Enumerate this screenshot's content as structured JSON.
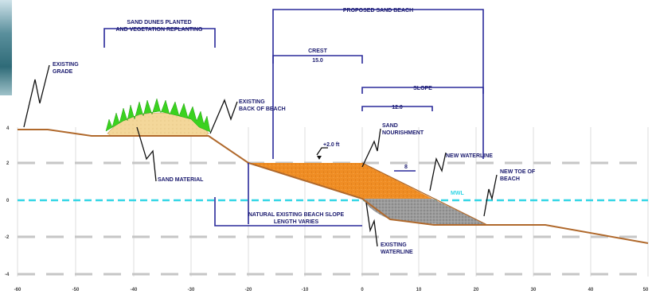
{
  "labels": {
    "existing_grade": [
      "EXISTING",
      "GRADE"
    ],
    "sand_dunes": [
      "SAND DUNES PLANTED",
      "AND VEGETATION REPLANTING"
    ],
    "sand_material": "SAND MATERIAL",
    "existing_back_of_beach": [
      "EXISTING",
      "BACK OF BEACH"
    ],
    "proposed_sand_beach": "PROPOSED SAND BEACH",
    "crest": "CREST",
    "crest_value": "15.0",
    "slope": "SLOPE",
    "slope_value": "12.0",
    "elevation": "+2.0 ft",
    "sand_nourishment": [
      "SAND",
      "NOURISHMENT"
    ],
    "new_waterline": "NEW WATERLINE",
    "new_toe": [
      "NEW TOE OF",
      "BEACH"
    ],
    "mwl": "MWL",
    "slope_ratio": "8",
    "natural_slope": [
      "NATURAL EXISTING BEACH SLOPE",
      "LENGTH VARIES"
    ],
    "existing_waterline": [
      "EXISTING",
      "WATERLINE"
    ]
  },
  "y_ticks": [
    "4",
    "2",
    "0",
    "-2",
    "-4"
  ],
  "x_ticks": [
    "-60",
    "-50",
    "-40",
    "-30",
    "-20",
    "-10",
    "0",
    "10",
    "20",
    "30",
    "40",
    "50"
  ],
  "colors": {
    "dimension": "#2a2a9a",
    "water": "#33d6e6",
    "dune_sand": "#f3d79a",
    "vegetation": "#3ad21f",
    "nourishment": "#ef8d24",
    "gravel": "#9c9c9c",
    "profile": "#b0692c",
    "grid": "#cfcfcf",
    "dash": "#c8c8c8"
  }
}
